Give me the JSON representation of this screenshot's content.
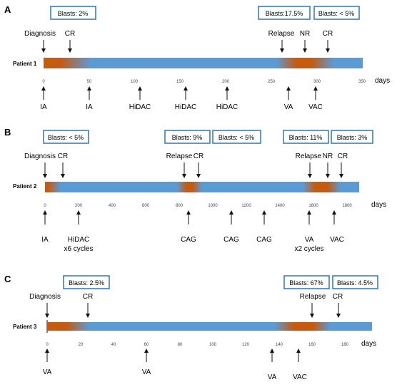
{
  "panels": [
    {
      "letter": "A",
      "patient": "Patient 1",
      "days_label": "days",
      "axis": {
        "min": 0,
        "max": 350,
        "ticks": [
          "0",
          "50",
          "100",
          "150",
          "200",
          "250",
          "300",
          "350"
        ]
      },
      "blasts": [
        "Blasts: 2%",
        "Blasts:17.5%",
        "Blasts: < 5%"
      ],
      "events_top": [
        "Diagnosis",
        "CR",
        "Relapse",
        "NR",
        "CR"
      ],
      "events_bottom": [
        "IA",
        "IA",
        "HiDAC",
        "HiDAC",
        "HiDAC",
        "VA",
        "VAC"
      ]
    },
    {
      "letter": "B",
      "patient": "Patient 2",
      "days_label": "days",
      "axis": {
        "min": 0,
        "max": 1800,
        "ticks": [
          "0",
          "200",
          "400",
          "600",
          "800",
          "1000",
          "1200",
          "1400",
          "1600",
          "1800"
        ]
      },
      "blasts": [
        "Blasts: < 5%",
        "Blasts: 9%",
        "Blasts: < 5%",
        "Blasts: 11%",
        "Blasts: 3%"
      ],
      "events_top": [
        "Diagnosis",
        "CR",
        "Relapse",
        "CR",
        "Relapse",
        "NR",
        "CR"
      ],
      "events_bottom": [
        "IA",
        "HiDAC",
        "x6 cycles",
        "CAG",
        "CAG",
        "CAG",
        "VA",
        "x2 cycles",
        "VAC"
      ]
    },
    {
      "letter": "C",
      "patient": "Patient 3",
      "days_label": "days",
      "axis": {
        "min": 0,
        "max": 180,
        "ticks": [
          "0",
          "20",
          "40",
          "60",
          "80",
          "100",
          "120",
          "140",
          "160",
          "180"
        ]
      },
      "blasts": [
        "Blasts: 2.5%",
        "Blasts: 67%",
        "Blasts: 4.5%"
      ],
      "events_top": [
        "Diagnosis",
        "CR",
        "Relapse",
        "CR"
      ],
      "events_bottom": [
        "VA",
        "VA",
        "VA",
        "VAC"
      ]
    }
  ],
  "colors": {
    "bar_blue": "#5b9bd5",
    "bar_orange": "#c55a11",
    "box_border": "#2e75b6"
  }
}
